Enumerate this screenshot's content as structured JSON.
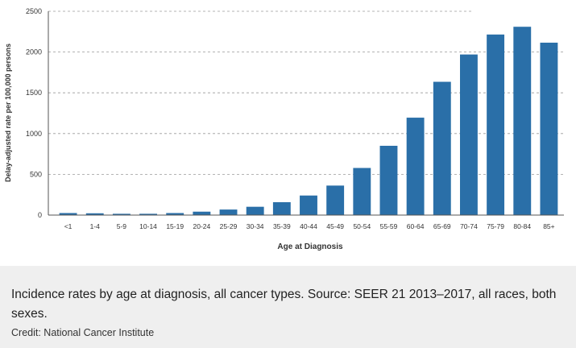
{
  "chart_data": {
    "type": "bar",
    "title": "",
    "xlabel": "Age at Diagnosis",
    "ylabel": "Delay-adjusted rate per 100,000 persons",
    "categories": [
      "<1",
      "1-4",
      "5-9",
      "10-14",
      "15-19",
      "20-24",
      "25-29",
      "30-34",
      "35-39",
      "40-44",
      "45-49",
      "50-54",
      "55-59",
      "60-64",
      "65-69",
      "70-74",
      "75-79",
      "80-84",
      "85+"
    ],
    "values": [
      25,
      22,
      16,
      16,
      25,
      42,
      68,
      102,
      158,
      240,
      362,
      578,
      850,
      1195,
      1635,
      1970,
      2215,
      2310,
      2115
    ],
    "ylim": [
      0,
      2500
    ],
    "yticks": [
      "0",
      "500",
      "1000",
      "1500",
      "2000",
      "2500"
    ],
    "grid": true,
    "bar_color": "#2a6fa8"
  },
  "caption": {
    "text": "Incidence rates by age at diagnosis, all cancer types. Source: SEER 21 2013–2017, all races, both sexes.",
    "credit": "Credit: National Cancer Institute"
  }
}
